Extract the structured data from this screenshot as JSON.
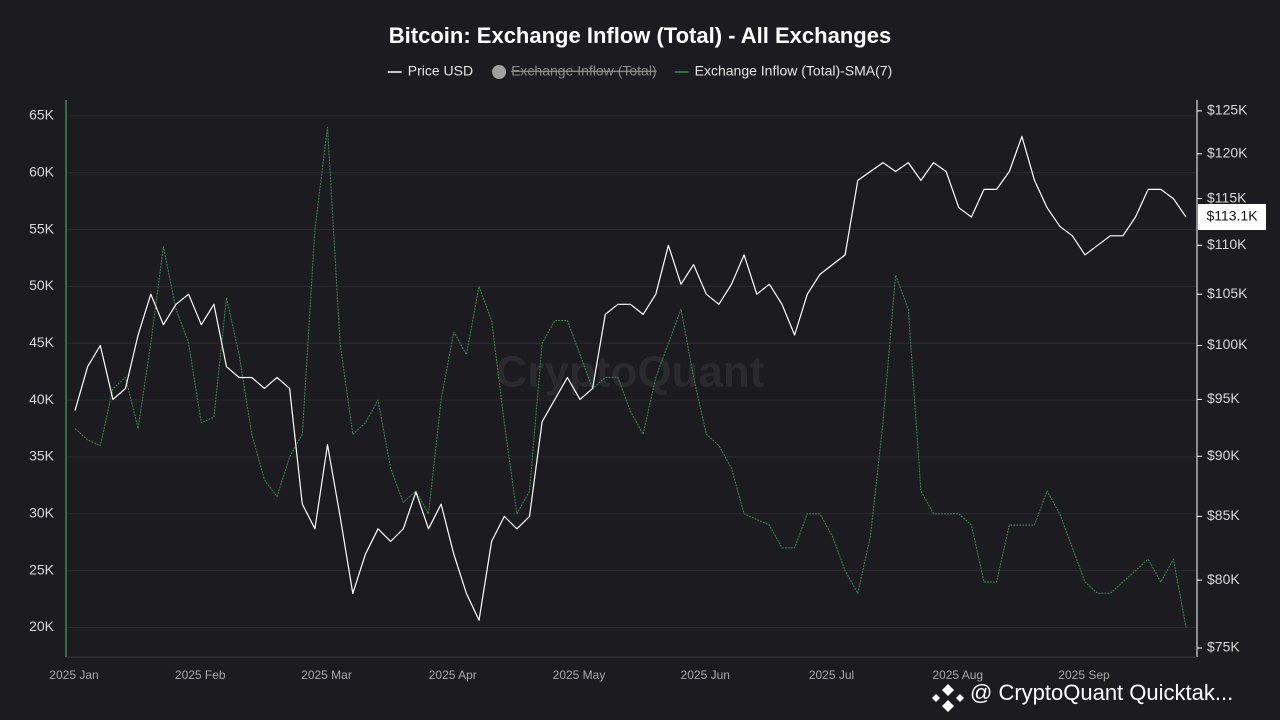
{
  "chart_data": {
    "type": "line",
    "title": "Bitcoin: Exchange Inflow (Total) - All Exchanges",
    "watermark": "CryptoQuant",
    "footer": "@ CryptoQuant Quicktak...",
    "price_label": "$113.1K",
    "hidden_legend": [
      {
        "name": "Exchange Inflow (Total)",
        "color": "#a0a0a0"
      }
    ],
    "categories": [
      "2025 Jan",
      null,
      null,
      null,
      null,
      null,
      null,
      null,
      null,
      null,
      "2025 Feb",
      null,
      null,
      null,
      null,
      null,
      null,
      null,
      null,
      null,
      "2025 Mar",
      null,
      null,
      null,
      null,
      null,
      null,
      null,
      null,
      null,
      "2025 Apr",
      null,
      null,
      null,
      null,
      null,
      null,
      null,
      null,
      null,
      "2025 May",
      null,
      null,
      null,
      null,
      null,
      null,
      null,
      null,
      null,
      "2025 Jun",
      null,
      null,
      null,
      null,
      null,
      null,
      null,
      null,
      null,
      "2025 Jul",
      null,
      null,
      null,
      null,
      null,
      null,
      null,
      null,
      null,
      "2025 Aug",
      null,
      null,
      null,
      null,
      null,
      null,
      null,
      null,
      null,
      "2025 Sep",
      null,
      null,
      null,
      null,
      null,
      null,
      null,
      null
    ],
    "series": [
      {
        "name": "Price USD",
        "color": "#ffffff",
        "axis": "y2",
        "values": [
          94000,
          98000,
          100000,
          95000,
          96000,
          101000,
          105000,
          102000,
          104000,
          105000,
          102000,
          104000,
          98000,
          97000,
          97000,
          96000,
          97000,
          96000,
          86000,
          84000,
          91000,
          85000,
          79000,
          82000,
          84000,
          83000,
          84000,
          87000,
          84000,
          86000,
          82000,
          79000,
          77000,
          83000,
          85000,
          84000,
          85000,
          93000,
          95000,
          97000,
          95000,
          96000,
          103000,
          104000,
          104000,
          103000,
          105000,
          110000,
          106000,
          108000,
          105000,
          104000,
          106000,
          109000,
          105000,
          106000,
          104000,
          101000,
          105000,
          107000,
          108000,
          109000,
          117000,
          118000,
          119000,
          118000,
          119000,
          117000,
          119000,
          118000,
          114000,
          113000,
          116000,
          116000,
          118000,
          122000,
          117000,
          114000,
          112000,
          111000,
          109000,
          110000,
          111000,
          111000,
          113000,
          116000,
          116000,
          115000,
          113000
        ]
      },
      {
        "name": "Exchange Inflow (Total)-SMA(7)",
        "color": "#3a8a52",
        "values": [
          37500,
          36500,
          36000,
          41000,
          42000,
          37500,
          45000,
          53500,
          48000,
          45000,
          38000,
          38500,
          49000,
          44000,
          37000,
          33000,
          31500,
          35000,
          37000,
          55000,
          64000,
          45000,
          37000,
          38000,
          40000,
          34000,
          31000,
          32000,
          30000,
          40000,
          46000,
          44000,
          50000,
          47000,
          38000,
          30000,
          32000,
          45000,
          47000,
          47000,
          44000,
          41000,
          42000,
          42000,
          39000,
          37000,
          42000,
          45000,
          48000,
          42000,
          37000,
          36000,
          34000,
          30000,
          29500,
          29000,
          27000,
          27000,
          30000,
          30000,
          28000,
          25000,
          23000,
          28000,
          38000,
          51000,
          48000,
          32000,
          30000,
          30000,
          30000,
          29000,
          24000,
          24000,
          29000,
          29000,
          29000,
          32000,
          30000,
          27000,
          24000,
          23000,
          23000,
          24000,
          25000,
          26000,
          24000,
          26000,
          20000
        ]
      }
    ],
    "ylim": [
      17400,
      66400
    ],
    "yticks": [
      {
        "value": 20000,
        "label": "20K"
      },
      {
        "value": 25000,
        "label": "25K"
      },
      {
        "value": 30000,
        "label": "30K"
      },
      {
        "value": 35000,
        "label": "35K"
      },
      {
        "value": 40000,
        "label": "40K"
      },
      {
        "value": 45000,
        "label": "45K"
      },
      {
        "value": 50000,
        "label": "50K"
      },
      {
        "value": 55000,
        "label": "55K"
      },
      {
        "value": 60000,
        "label": "60K"
      },
      {
        "value": 65000,
        "label": "65K"
      }
    ],
    "y2lim": [
      74360,
      126300
    ],
    "y2log": true,
    "y2ticks": [
      {
        "value": 75000,
        "label": "$75K"
      },
      {
        "value": 80000,
        "label": "$80K"
      },
      {
        "value": 85000,
        "label": "$85K"
      },
      {
        "value": 90000,
        "label": "$90K"
      },
      {
        "value": 95000,
        "label": "$95K"
      },
      {
        "value": 100000,
        "label": "$100K"
      },
      {
        "value": 105000,
        "label": "$105K"
      },
      {
        "value": 110000,
        "label": "$110K"
      },
      {
        "value": 115000,
        "label": "$115K"
      },
      {
        "value": 120000,
        "label": "$120K"
      },
      {
        "value": 125000,
        "label": "$125K"
      }
    ],
    "grid": true
  }
}
